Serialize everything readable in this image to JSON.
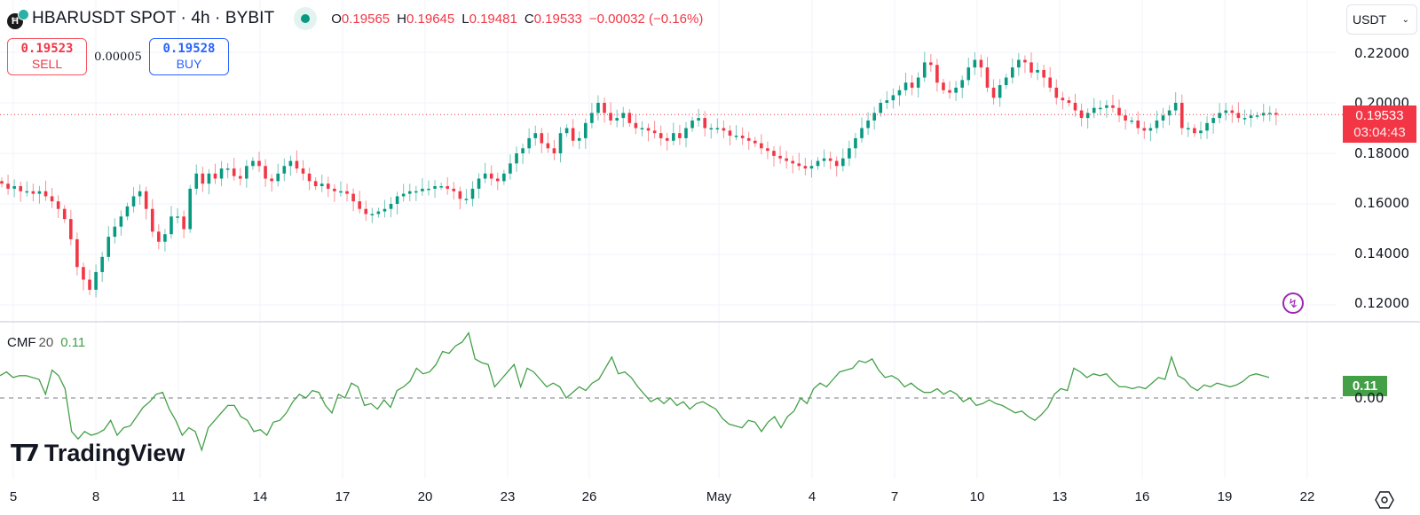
{
  "header": {
    "symbol_title": "HBARUSDT SPOT · 4h · BYBIT",
    "symbol_icon": "hbar-coin-icon",
    "market_status": "open",
    "ohlc": {
      "o_label": "O",
      "o": "0.19565",
      "h_label": "H",
      "h": "0.19645",
      "l_label": "L",
      "l": "0.19481",
      "c_label": "C",
      "c": "0.19533",
      "change": "−0.00032 (−0.16%)"
    }
  },
  "trade": {
    "sell_price": "0.19523",
    "sell_label": "SELL",
    "spread": "0.00005",
    "buy_price": "0.19528",
    "buy_label": "BUY"
  },
  "currency_select": {
    "value": "USDT"
  },
  "price_axis": {
    "labels": [
      "0.22000",
      "0.20000",
      "0.18000",
      "0.16000",
      "0.14000",
      "0.12000"
    ],
    "last_price": "0.19533",
    "countdown": "03:04:43"
  },
  "cmf": {
    "name": "CMF",
    "length": "20",
    "value": "0.11",
    "zero_label": "0.00"
  },
  "time_axis": {
    "labels": [
      "5",
      "8",
      "11",
      "14",
      "17",
      "20",
      "23",
      "26",
      "May",
      "4",
      "7",
      "10",
      "13",
      "16",
      "19",
      "22"
    ]
  },
  "branding": {
    "logo_text": "TradingView"
  },
  "colors": {
    "up": "#089981",
    "down": "#f23645",
    "cmf_line": "#43a047",
    "last_price_tag": "#f23645",
    "grid": "#f0f3fa"
  },
  "chart_data": [
    {
      "type": "candlestick",
      "title": "HBARUSDT SPOT · 4h · BYBIT",
      "ylabel": "USDT",
      "ylim": [
        0.115,
        0.232
      ],
      "y_ticks": [
        0.12,
        0.14,
        0.16,
        0.18,
        0.2,
        0.22
      ],
      "x_ticks": [
        "5",
        "8",
        "11",
        "14",
        "17",
        "20",
        "23",
        "26",
        "May",
        "4",
        "7",
        "10",
        "13",
        "16",
        "19",
        "22"
      ],
      "grid": true,
      "last_price": 0.19533,
      "closes": [
        0.168,
        0.166,
        0.167,
        0.165,
        0.165,
        0.164,
        0.165,
        0.163,
        0.161,
        0.158,
        0.154,
        0.146,
        0.135,
        0.13,
        0.126,
        0.133,
        0.139,
        0.147,
        0.151,
        0.155,
        0.159,
        0.163,
        0.165,
        0.158,
        0.149,
        0.145,
        0.148,
        0.155,
        0.155,
        0.15,
        0.166,
        0.172,
        0.168,
        0.172,
        0.17,
        0.174,
        0.174,
        0.171,
        0.17,
        0.175,
        0.177,
        0.175,
        0.17,
        0.169,
        0.172,
        0.175,
        0.177,
        0.174,
        0.172,
        0.169,
        0.167,
        0.168,
        0.166,
        0.165,
        0.165,
        0.164,
        0.161,
        0.158,
        0.156,
        0.156,
        0.157,
        0.158,
        0.16,
        0.163,
        0.164,
        0.165,
        0.165,
        0.166,
        0.166,
        0.167,
        0.167,
        0.166,
        0.165,
        0.162,
        0.162,
        0.166,
        0.17,
        0.172,
        0.17,
        0.169,
        0.172,
        0.176,
        0.18,
        0.182,
        0.186,
        0.188,
        0.184,
        0.182,
        0.18,
        0.188,
        0.19,
        0.185,
        0.186,
        0.192,
        0.196,
        0.2,
        0.196,
        0.193,
        0.194,
        0.196,
        0.192,
        0.19,
        0.19,
        0.189,
        0.188,
        0.186,
        0.185,
        0.188,
        0.186,
        0.19,
        0.193,
        0.194,
        0.19,
        0.19,
        0.19,
        0.189,
        0.187,
        0.187,
        0.186,
        0.185,
        0.184,
        0.182,
        0.181,
        0.179,
        0.178,
        0.177,
        0.176,
        0.175,
        0.174,
        0.175,
        0.177,
        0.178,
        0.177,
        0.175,
        0.178,
        0.182,
        0.186,
        0.19,
        0.193,
        0.196,
        0.2,
        0.201,
        0.203,
        0.205,
        0.208,
        0.206,
        0.21,
        0.216,
        0.215,
        0.208,
        0.205,
        0.204,
        0.206,
        0.209,
        0.214,
        0.217,
        0.214,
        0.206,
        0.202,
        0.207,
        0.21,
        0.214,
        0.217,
        0.216,
        0.212,
        0.213,
        0.21,
        0.206,
        0.202,
        0.201,
        0.2,
        0.197,
        0.194,
        0.196,
        0.198,
        0.198,
        0.199,
        0.198,
        0.195,
        0.193,
        0.193,
        0.19,
        0.189,
        0.19,
        0.193,
        0.195,
        0.197,
        0.2,
        0.19,
        0.19,
        0.188,
        0.189,
        0.192,
        0.194,
        0.196,
        0.197,
        0.196,
        0.194,
        0.194,
        0.195,
        0.195,
        0.196,
        0.196,
        0.1953
      ]
    },
    {
      "type": "line",
      "title": "CMF 20",
      "series": [
        {
          "name": "CMF 20",
          "last": 0.11
        }
      ],
      "ylim": [
        -0.45,
        0.4
      ],
      "reference_line": 0.0,
      "values": [
        0.12,
        0.14,
        0.11,
        0.12,
        0.12,
        0.11,
        0.1,
        0.02,
        0.15,
        0.12,
        0.05,
        -0.18,
        -0.22,
        -0.18,
        -0.2,
        -0.19,
        -0.17,
        -0.12,
        -0.2,
        -0.16,
        -0.15,
        -0.1,
        -0.05,
        -0.02,
        0.02,
        0.03,
        -0.06,
        -0.12,
        -0.2,
        -0.16,
        -0.18,
        -0.28,
        -0.16,
        -0.12,
        -0.08,
        -0.04,
        -0.04,
        -0.1,
        -0.12,
        -0.18,
        -0.17,
        -0.2,
        -0.13,
        -0.12,
        -0.08,
        -0.02,
        0.02,
        0.0,
        0.04,
        0.03,
        -0.04,
        -0.08,
        0.02,
        0.0,
        0.08,
        0.06,
        -0.04,
        -0.03,
        -0.06,
        -0.01,
        -0.05,
        0.04,
        0.06,
        0.09,
        0.16,
        0.13,
        0.14,
        0.18,
        0.25,
        0.24,
        0.28,
        0.3,
        0.35,
        0.21,
        0.19,
        0.18,
        0.06,
        0.1,
        0.14,
        0.18,
        0.06,
        0.16,
        0.14,
        0.1,
        0.06,
        0.08,
        0.06,
        0.0,
        0.03,
        0.06,
        0.04,
        0.08,
        0.1,
        0.16,
        0.22,
        0.13,
        0.14,
        0.11,
        0.06,
        0.02,
        -0.02,
        0.0,
        -0.03,
        0.0,
        -0.04,
        -0.02,
        -0.06,
        -0.03,
        -0.02,
        -0.04,
        -0.06,
        -0.11,
        -0.14,
        -0.15,
        -0.16,
        -0.12,
        -0.13,
        -0.18,
        -0.13,
        -0.1,
        -0.16,
        -0.1,
        -0.07,
        0.0,
        -0.03,
        0.05,
        0.08,
        0.06,
        0.1,
        0.14,
        0.15,
        0.16,
        0.2,
        0.19,
        0.21,
        0.15,
        0.11,
        0.12,
        0.1,
        0.06,
        0.08,
        0.05,
        0.03,
        0.03,
        0.05,
        0.02,
        0.04,
        0.02,
        -0.02,
        0.0,
        -0.04,
        -0.03,
        -0.01,
        -0.03,
        -0.04,
        -0.06,
        -0.08,
        -0.07,
        -0.1,
        -0.12,
        -0.09,
        -0.05,
        0.02,
        0.05,
        0.04,
        0.16,
        0.14,
        0.11,
        0.13,
        0.12,
        0.13,
        0.09,
        0.06,
        0.06,
        0.05,
        0.06,
        0.05,
        0.08,
        0.11,
        0.1,
        0.22,
        0.12,
        0.1,
        0.06,
        0.04,
        0.07,
        0.06,
        0.08,
        0.07,
        0.06,
        0.07,
        0.09,
        0.12,
        0.13,
        0.12,
        0.11
      ]
    }
  ]
}
